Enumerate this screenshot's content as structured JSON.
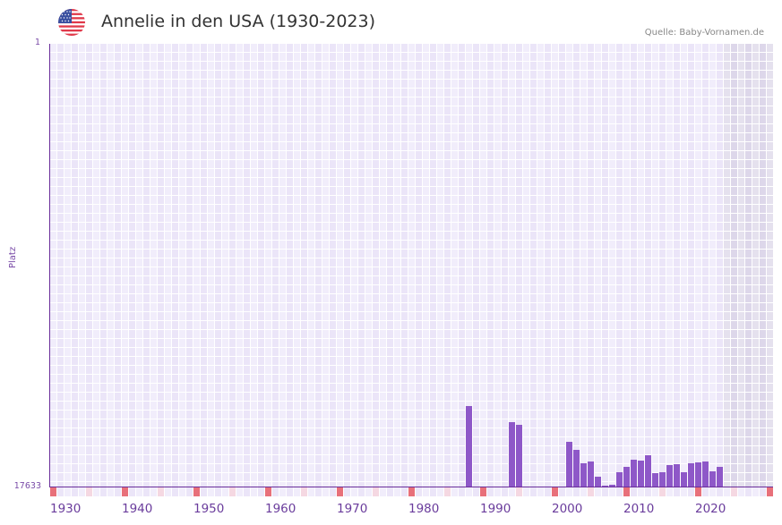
{
  "header": {
    "flag_icon": "us-flag-icon",
    "title": "Annelie in den USA (1930-2023)",
    "source": "Quelle: Baby-Vornamen.de"
  },
  "colors": {
    "bar": "#8e58c8",
    "axis": "#6a2e9a",
    "grid_a": "#f1edfb",
    "grid_b": "#ebe5f8",
    "future_a": "#e5e1ee",
    "future_b": "#ddd7ea",
    "decade_marker": "#e8707a",
    "half_decade_marker": "#f5d8e2",
    "minor_marker_a": "#f1edfb",
    "minor_marker_b": "#ebe5f8"
  },
  "chart_data": {
    "type": "bar",
    "title": "Annelie in den USA (1930-2023)",
    "xlabel": "",
    "ylabel": "Platz",
    "y_axis_inverted": true,
    "ylim": [
      17633,
      1
    ],
    "y_ticks": [
      "1",
      "17633"
    ],
    "x_range": [
      1930,
      2030
    ],
    "x_ticks": [
      "1930",
      "1940",
      "1950",
      "1960",
      "1970",
      "1980",
      "1990",
      "2000",
      "2010",
      "2020"
    ],
    "data_years_range": [
      1930,
      2023
    ],
    "shaded_future_from": 2024,
    "grid": true,
    "legend": null,
    "series": [
      {
        "name": "Platz",
        "x": [
          1988,
          1994,
          1995,
          2002,
          2003,
          2004,
          2005,
          2006,
          2007,
          2008,
          2009,
          2010,
          2011,
          2012,
          2013,
          2014,
          2015,
          2016,
          2017,
          2018,
          2019,
          2020,
          2021,
          2022,
          2023
        ],
        "values": [
          14427,
          15067,
          15174,
          15851,
          16172,
          16706,
          16635,
          17240,
          17597,
          17561,
          17062,
          16848,
          16564,
          16599,
          16385,
          17098,
          17062,
          16777,
          16742,
          17062,
          16706,
          16670,
          16635,
          17026,
          16848
        ]
      }
    ]
  }
}
